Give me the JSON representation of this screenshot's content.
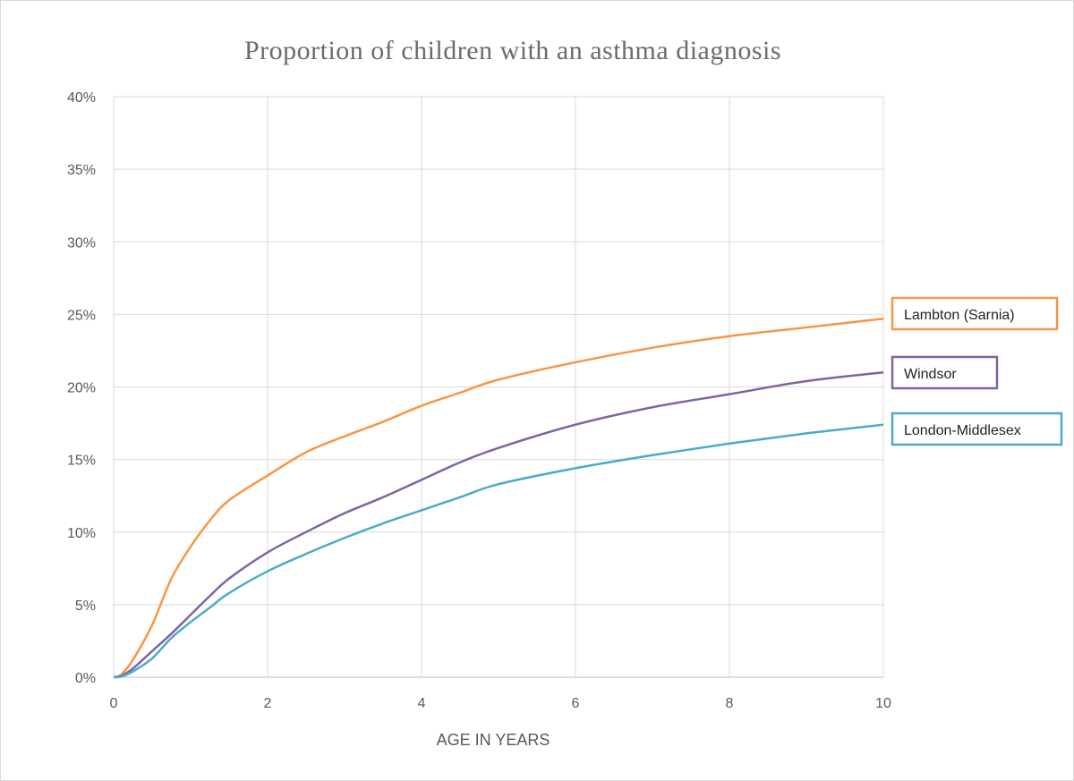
{
  "chart_data": {
    "type": "line",
    "title": "Proportion of children with an asthma diagnosis",
    "xlabel": "AGE IN YEARS",
    "ylabel": "",
    "xlim": [
      0,
      10
    ],
    "ylim": [
      0,
      40
    ],
    "x_ticks": [
      "0",
      "2",
      "4",
      "6",
      "8",
      "10"
    ],
    "y_ticks": [
      "0%",
      "5%",
      "10%",
      "15%",
      "20%",
      "25%",
      "30%",
      "35%",
      "40%"
    ],
    "grid": true,
    "legend": "inline labels at right end of lines",
    "x": [
      0,
      0.1,
      0.25,
      0.5,
      0.75,
      1,
      1.25,
      1.5,
      2,
      2.5,
      3,
      3.5,
      4,
      4.5,
      5,
      6,
      7,
      8,
      9,
      10
    ],
    "series": [
      {
        "name": "Lambton (Sarnia)",
        "color": "#F79646",
        "values": [
          0,
          0.2,
          1.2,
          3.6,
          6.8,
          9.0,
          10.8,
          12.2,
          13.9,
          15.5,
          16.6,
          17.6,
          18.7,
          19.6,
          20.5,
          21.7,
          22.7,
          23.5,
          24.1,
          24.7
        ]
      },
      {
        "name": "Windsor",
        "color": "#8064A2",
        "values": [
          0,
          0.1,
          0.6,
          1.8,
          3.0,
          4.3,
          5.6,
          6.8,
          8.6,
          10.0,
          11.3,
          12.4,
          13.6,
          14.8,
          15.8,
          17.4,
          18.6,
          19.5,
          20.4,
          21.0
        ]
      },
      {
        "name": "London-Middlesex",
        "color": "#4BACC6",
        "values": [
          0,
          0.05,
          0.4,
          1.3,
          2.7,
          3.8,
          4.8,
          5.8,
          7.3,
          8.5,
          9.6,
          10.6,
          11.5,
          12.4,
          13.3,
          14.4,
          15.3,
          16.1,
          16.8,
          17.4
        ]
      }
    ]
  }
}
